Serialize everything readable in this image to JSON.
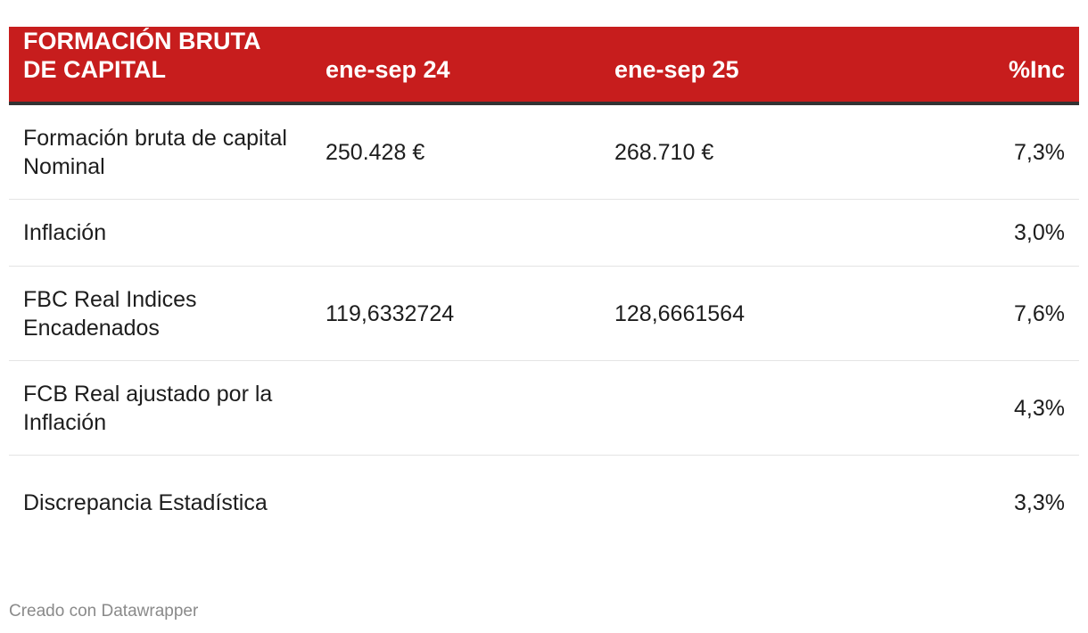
{
  "chart_data": {
    "type": "table",
    "header_color": "#c71d1d",
    "columns": [
      "FORMACIÓN BRUTA DE CAPITAL",
      "ene-sep 24",
      "ene-sep 25",
      "%Inc"
    ],
    "rows": [
      [
        "Formación bruta de capital Nominal",
        "250.428 €",
        "268.710 €",
        "7,3%"
      ],
      [
        "Inflación",
        "",
        "",
        "3,0%"
      ],
      [
        "FBC Real Indices Encadenados",
        "119,6332724",
        "128,6661564",
        "7,6%"
      ],
      [
        "FCB Real ajustado por la Inflación",
        "",
        "",
        "4,3%"
      ],
      [
        "Discrepancia Estadística",
        "",
        "",
        "3,3%"
      ]
    ]
  },
  "footer": "Creado con Datawrapper"
}
